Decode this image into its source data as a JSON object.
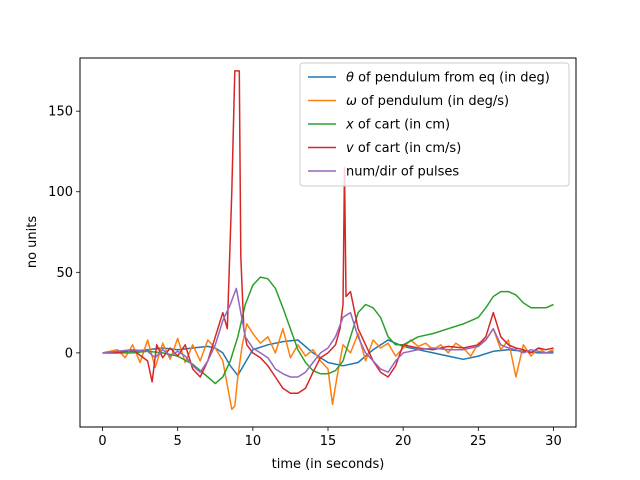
{
  "chart_data": {
    "type": "line",
    "title": "",
    "xlabel": "time (in seconds)",
    "ylabel": "no units",
    "xlim": [
      -1.5,
      31.5
    ],
    "ylim": [
      -46,
      183
    ],
    "xticks": [
      0,
      5,
      10,
      15,
      20,
      25,
      30
    ],
    "yticks": [
      0,
      50,
      100,
      150
    ],
    "grid": false,
    "legend": "top-right",
    "series": [
      {
        "name": "θ of pendulum from eq (in deg)",
        "legend_prefix": "θ",
        "legend_rest": " of pendulum from eq (in deg)",
        "color": "#1f77b4",
        "x": [
          0,
          1,
          2,
          3,
          4,
          5,
          6,
          7,
          7.5,
          8,
          8.5,
          9,
          9.5,
          10,
          11,
          12,
          13,
          14,
          15,
          16,
          17,
          18,
          19,
          20,
          21,
          22,
          23,
          24,
          25,
          26,
          27,
          28,
          29,
          30
        ],
        "y": [
          0,
          0.5,
          1,
          2,
          3,
          2,
          3,
          4,
          3,
          0,
          -8,
          -14,
          -6,
          2,
          5,
          7,
          8,
          0,
          -6,
          -8,
          -6,
          2,
          8,
          4,
          2,
          0,
          -2,
          -4,
          -2,
          1,
          2,
          1,
          0,
          0
        ]
      },
      {
        "name": "ω of pendulum (in deg/s)",
        "legend_prefix": "ω",
        "legend_rest": " of pendulum (in deg/s)",
        "color": "#ff7f0e",
        "x": [
          0,
          1,
          1.5,
          2,
          2.5,
          3,
          3.5,
          4,
          4.5,
          5,
          5.5,
          6,
          6.5,
          7,
          7.5,
          8,
          8.3,
          8.6,
          8.8,
          9,
          9.3,
          9.6,
          10,
          10.5,
          11,
          11.5,
          12,
          12.5,
          13,
          13.5,
          14,
          14.5,
          15,
          15.3,
          15.6,
          16,
          16.5,
          17,
          17.5,
          18,
          18.5,
          19,
          19.5,
          20,
          20.5,
          21,
          21.5,
          22,
          22.5,
          23,
          23.5,
          24,
          24.5,
          25,
          25.5,
          26,
          26.5,
          27,
          27.5,
          28,
          28.5,
          29,
          29.5,
          30
        ],
        "y": [
          0,
          2,
          -3,
          5,
          -6,
          8,
          -9,
          6,
          -4,
          9,
          -6,
          5,
          -5,
          8,
          3,
          -5,
          -20,
          -35,
          -33,
          -15,
          5,
          18,
          12,
          6,
          10,
          0,
          15,
          -3,
          5,
          -2,
          2,
          -5,
          -10,
          -32,
          -15,
          5,
          0,
          12,
          -5,
          8,
          3,
          6,
          -2,
          3,
          8,
          4,
          6,
          2,
          5,
          0,
          6,
          3,
          -2,
          6,
          8,
          15,
          2,
          8,
          -15,
          5,
          -2,
          3,
          0,
          2
        ]
      },
      {
        "name": "x of cart (in cm)",
        "legend_prefix": "x",
        "legend_rest": " of cart (in cm)",
        "color": "#2ca02c",
        "x": [
          0,
          1,
          2,
          3,
          4,
          5,
          6,
          7,
          7.5,
          8,
          8.5,
          9,
          9.5,
          10,
          10.5,
          11,
          11.5,
          12,
          12.5,
          13,
          13.5,
          14,
          14.5,
          15,
          15.5,
          16,
          16.5,
          17,
          17.5,
          18,
          18.5,
          19,
          19.5,
          20,
          21,
          22,
          23,
          24,
          25,
          25.5,
          26,
          26.5,
          27,
          27.5,
          28,
          28.5,
          29,
          29.5,
          30
        ],
        "y": [
          0,
          0,
          0,
          1,
          0,
          -2,
          -7,
          -15,
          -19,
          -15,
          -5,
          10,
          30,
          42,
          47,
          46,
          40,
          28,
          15,
          2,
          -6,
          -11,
          -13,
          -13,
          -11,
          -5,
          10,
          25,
          30,
          28,
          22,
          10,
          5,
          5,
          10,
          12,
          15,
          18,
          22,
          28,
          35,
          38,
          38,
          36,
          31,
          28,
          28,
          28,
          30
        ]
      },
      {
        "name": "v of cart  (in cm/s)",
        "legend_prefix": "v",
        "legend_rest": " of cart  (in cm/s)",
        "color": "#d62728",
        "x": [
          0,
          1,
          2,
          3,
          3.3,
          3.6,
          4,
          4.5,
          5,
          5.5,
          6,
          6.5,
          7,
          7.5,
          8,
          8.3,
          8.6,
          8.8,
          8.9,
          9.1,
          9.2,
          9.4,
          9.6,
          10,
          10.5,
          11,
          11.5,
          12,
          12.5,
          13,
          13.5,
          14,
          14.5,
          15,
          15.5,
          15.8,
          16,
          16.1,
          16.2,
          16.5,
          17,
          17.5,
          18,
          18.5,
          19,
          19.5,
          20,
          21,
          22,
          23,
          24,
          25,
          25.5,
          26,
          26.5,
          27,
          27.5,
          28,
          28.5,
          29,
          29.5,
          30
        ],
        "y": [
          0,
          0,
          2,
          -5,
          -18,
          5,
          -3,
          3,
          -2,
          5,
          -10,
          -15,
          -5,
          10,
          25,
          15,
          100,
          175,
          175,
          175,
          60,
          15,
          5,
          0,
          -3,
          -8,
          -15,
          -22,
          -25,
          -25,
          -22,
          -12,
          -3,
          0,
          5,
          15,
          30,
          115,
          35,
          38,
          15,
          5,
          -5,
          -12,
          -15,
          -8,
          5,
          3,
          2,
          4,
          3,
          5,
          10,
          25,
          10,
          5,
          3,
          2,
          0,
          3,
          2,
          3
        ]
      },
      {
        "name": "num/dir of pulses",
        "legend_prefix": "",
        "legend_rest": "num/dir of pulses",
        "color": "#9467bd",
        "x": [
          0,
          1,
          2,
          3,
          3.5,
          4,
          4.5,
          5,
          5.5,
          6,
          6.5,
          7,
          7.5,
          8,
          8.5,
          8.9,
          9.2,
          9.5,
          10,
          10.5,
          11,
          11.5,
          12,
          12.5,
          13,
          13.5,
          14,
          14.5,
          15,
          15.5,
          16,
          16.5,
          17,
          17.5,
          18,
          18.5,
          19,
          19.5,
          20,
          21,
          22,
          23,
          24,
          25,
          25.5,
          26,
          26.5,
          27,
          27.5,
          28,
          28.5,
          29,
          29.5,
          30
        ],
        "y": [
          0,
          1,
          2,
          1,
          -3,
          2,
          -2,
          1,
          -2,
          -8,
          -12,
          -5,
          5,
          20,
          30,
          40,
          25,
          10,
          3,
          0,
          -3,
          -10,
          -13,
          -15,
          -15,
          -12,
          -6,
          0,
          3,
          10,
          22,
          25,
          10,
          0,
          -5,
          -10,
          -12,
          -5,
          0,
          2,
          3,
          2,
          2,
          4,
          8,
          15,
          5,
          3,
          2,
          0,
          2,
          1,
          0,
          1
        ]
      }
    ]
  }
}
